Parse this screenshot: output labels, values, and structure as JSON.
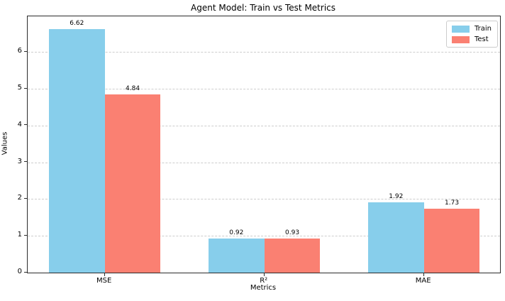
{
  "chart_data": {
    "type": "bar",
    "title": "Agent Model: Train vs Test Metrics",
    "xlabel": "Metrics",
    "ylabel": "Values",
    "categories": [
      "MSE",
      "R²",
      "MAE"
    ],
    "series": [
      {
        "name": "Train",
        "color": "#87CEEB",
        "values": [
          6.62,
          0.92,
          1.92
        ],
        "labels": [
          "6.62",
          "0.92",
          "1.92"
        ]
      },
      {
        "name": "Test",
        "color": "#FA8072",
        "values": [
          4.84,
          0.93,
          1.73
        ],
        "labels": [
          "4.84",
          "0.93",
          "1.73"
        ]
      }
    ],
    "yticks": [
      0,
      1,
      2,
      3,
      4,
      5,
      6
    ],
    "ylim": [
      0,
      6.97
    ],
    "bar_width_units": 0.35,
    "grid": "horizontal-dashed",
    "legend_position": "upper-right",
    "spine_color": "#2b2b2b",
    "grid_color": "#cdcdcd",
    "background_color": "#ffffff"
  }
}
